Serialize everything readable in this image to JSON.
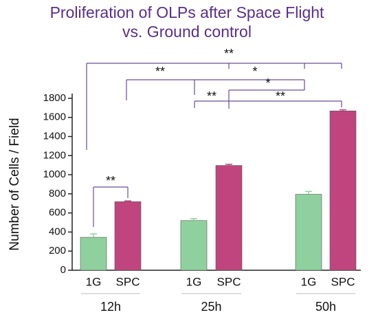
{
  "chart_data": {
    "type": "bar",
    "title": [
      "Proliferation of OLPs after Space Flight",
      "vs. Ground control"
    ],
    "y_label": "Number of Cells / Field",
    "categories": [
      "12h",
      "25h",
      "50h"
    ],
    "series": [
      {
        "name": "1G",
        "color": "#8fd19e",
        "values": [
          345,
          520,
          795
        ],
        "errors": [
          35,
          20,
          30
        ]
      },
      {
        "name": "SPC",
        "color": "#c0457e",
        "values": [
          718,
          1097,
          1668
        ],
        "errors": [
          8,
          12,
          12
        ]
      }
    ],
    "ylim": [
      0,
      1850
    ],
    "yticks": [
      0,
      200,
      400,
      600,
      800,
      1000,
      1200,
      1400,
      1600,
      1800
    ],
    "annotations": [
      "**",
      "**",
      "*",
      "*",
      "**",
      "**",
      "**"
    ]
  }
}
